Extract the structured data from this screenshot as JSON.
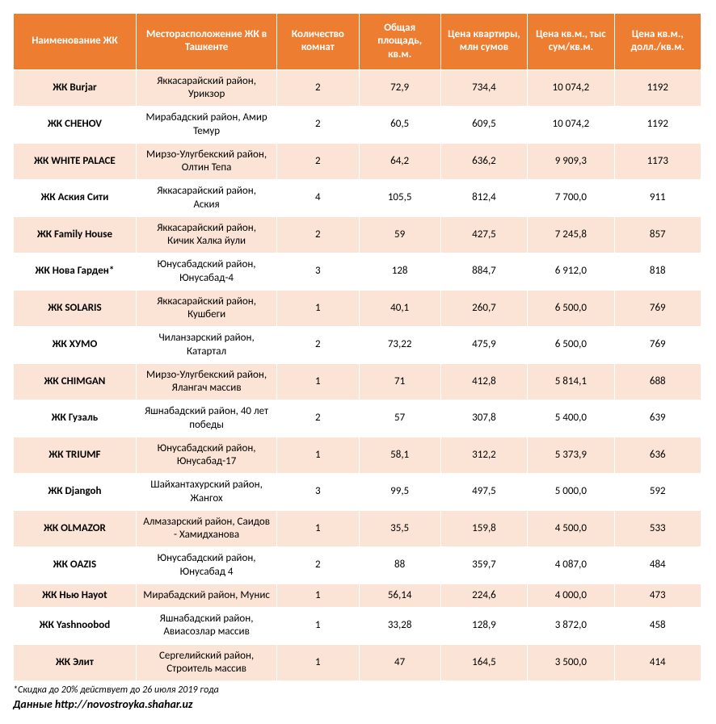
{
  "table": {
    "type": "table",
    "background_color": "#ffffff",
    "header_bg": "#ed7d31",
    "header_fg": "#ffffff",
    "row_odd_bg": "#fbe4d5",
    "row_even_bg": "#ffffff",
    "border_color": "#ffffff",
    "font_family": "Calibri",
    "header_fontsize": 13,
    "body_fontsize": 13,
    "columns": [
      {
        "key": "name",
        "label": "Наименование ЖК",
        "width": 150,
        "align": "center",
        "bold": true
      },
      {
        "key": "location",
        "label": "Месторасположение ЖК в Ташкенте",
        "width": 172,
        "align": "center",
        "bold": false
      },
      {
        "key": "rooms",
        "label": "Количество комнат",
        "width": 100,
        "align": "center",
        "bold": false
      },
      {
        "key": "area",
        "label": "Общая площадь, кв.м.",
        "width": 100,
        "align": "center",
        "bold": false
      },
      {
        "key": "price_m",
        "label": "Цена квартиры, млн сумов",
        "width": 106,
        "align": "center",
        "bold": false
      },
      {
        "key": "price_s",
        "label": "Цена кв.м., тыс сум/кв.м.",
        "width": 106,
        "align": "center",
        "bold": false
      },
      {
        "key": "price_d",
        "label": "Цена кв.м., долл./кв.м.",
        "width": 106,
        "align": "center",
        "bold": false
      }
    ],
    "rows": [
      {
        "name": "ЖК Burjar",
        "location": "Яккасарайский район, Урикзор",
        "rooms": "2",
        "area": "72,9",
        "price_m": "734,4",
        "price_s": "10 074,2",
        "price_d": "1192"
      },
      {
        "name": "ЖК CHEHOV",
        "location": "Мирабадский район, Амир Темур",
        "rooms": "2",
        "area": "60,5",
        "price_m": "609,5",
        "price_s": "10 074,2",
        "price_d": "1192"
      },
      {
        "name": "ЖК WHITE PALACE",
        "location": "Мирзо-Улугбекский район, Олтин Тепа",
        "rooms": "2",
        "area": "64,2",
        "price_m": "636,2",
        "price_s": "9 909,3",
        "price_d": "1173"
      },
      {
        "name": "ЖК Аския Сити",
        "location": "Яккасарайский район, Аския",
        "rooms": "4",
        "area": "105,5",
        "price_m": "812,4",
        "price_s": "7 700,0",
        "price_d": "911"
      },
      {
        "name": "ЖК Family House",
        "location": "Яккасарайский район, Кичик Халка йули",
        "rooms": "2",
        "area": "59",
        "price_m": "427,5",
        "price_s": "7 245,8",
        "price_d": "857"
      },
      {
        "name": "ЖК Нова Гарден*",
        "location": "Юнусабадский район, Юнусабад-4",
        "rooms": "3",
        "area": "128",
        "price_m": "884,7",
        "price_s": "6 912,0",
        "price_d": "818"
      },
      {
        "name": "ЖК SOLARIS",
        "location": "Яккасарайский район, Кушбеги",
        "rooms": "1",
        "area": "40,1",
        "price_m": "260,7",
        "price_s": "6 500,0",
        "price_d": "769"
      },
      {
        "name": "ЖК ХУМО",
        "location": "Чиланзарский район, Катартал",
        "rooms": "2",
        "area": "73,22",
        "price_m": "475,9",
        "price_s": "6 500,0",
        "price_d": "769"
      },
      {
        "name": "ЖК CHIMGAN",
        "location": "Мирзо-Улугбекский район, Ялангач массив",
        "rooms": "1",
        "area": "71",
        "price_m": "412,8",
        "price_s": "5 814,1",
        "price_d": "688"
      },
      {
        "name": "ЖК Гузаль",
        "location": "Яшнабадский район, 40 лет победы",
        "rooms": "2",
        "area": "57",
        "price_m": "307,8",
        "price_s": "5 400,0",
        "price_d": "639"
      },
      {
        "name": "ЖК TRIUMF",
        "location": "Юнусабадский район, Юнусабад-17",
        "rooms": "1",
        "area": "58,1",
        "price_m": "312,2",
        "price_s": "5 373,9",
        "price_d": "636"
      },
      {
        "name": "ЖК Djangoh",
        "location": "Шайхантахурский район, Жангох",
        "rooms": "3",
        "area": "99,5",
        "price_m": "497,5",
        "price_s": "5 000,0",
        "price_d": "592"
      },
      {
        "name": "ЖК OLMAZOR",
        "location": "Алмазарский район, Саидов - Хамидханова",
        "rooms": "1",
        "area": "35,5",
        "price_m": "159,8",
        "price_s": "4 500,0",
        "price_d": "533"
      },
      {
        "name": "ЖК OAZIS",
        "location": "Юнусабадский район, Юнусабад 4",
        "rooms": "2",
        "area": "88",
        "price_m": "359,7",
        "price_s": "4 087,0",
        "price_d": "484"
      },
      {
        "name": "ЖК Нью Hayot",
        "location": "Мирабадский район, Мунис",
        "rooms": "1",
        "area": "56,14",
        "price_m": "224,6",
        "price_s": "4 000,0",
        "price_d": "473"
      },
      {
        "name": "ЖК Yashnoobod",
        "location": "Яшнабадский район, Авиасозлар массив",
        "rooms": "1",
        "area": "33,28",
        "price_m": "128,9",
        "price_s": "3 872,0",
        "price_d": "458"
      },
      {
        "name": "ЖК Элит",
        "location": "Сергелийский район, Строитель массив",
        "rooms": "1",
        "area": "47",
        "price_m": "164,5",
        "price_s": "3 500,0",
        "price_d": "414"
      }
    ]
  },
  "footnote": "*Скидка до 20% действует до 26 июля 2019 года",
  "source": "Данные http://novostroyka.shahar.uz"
}
